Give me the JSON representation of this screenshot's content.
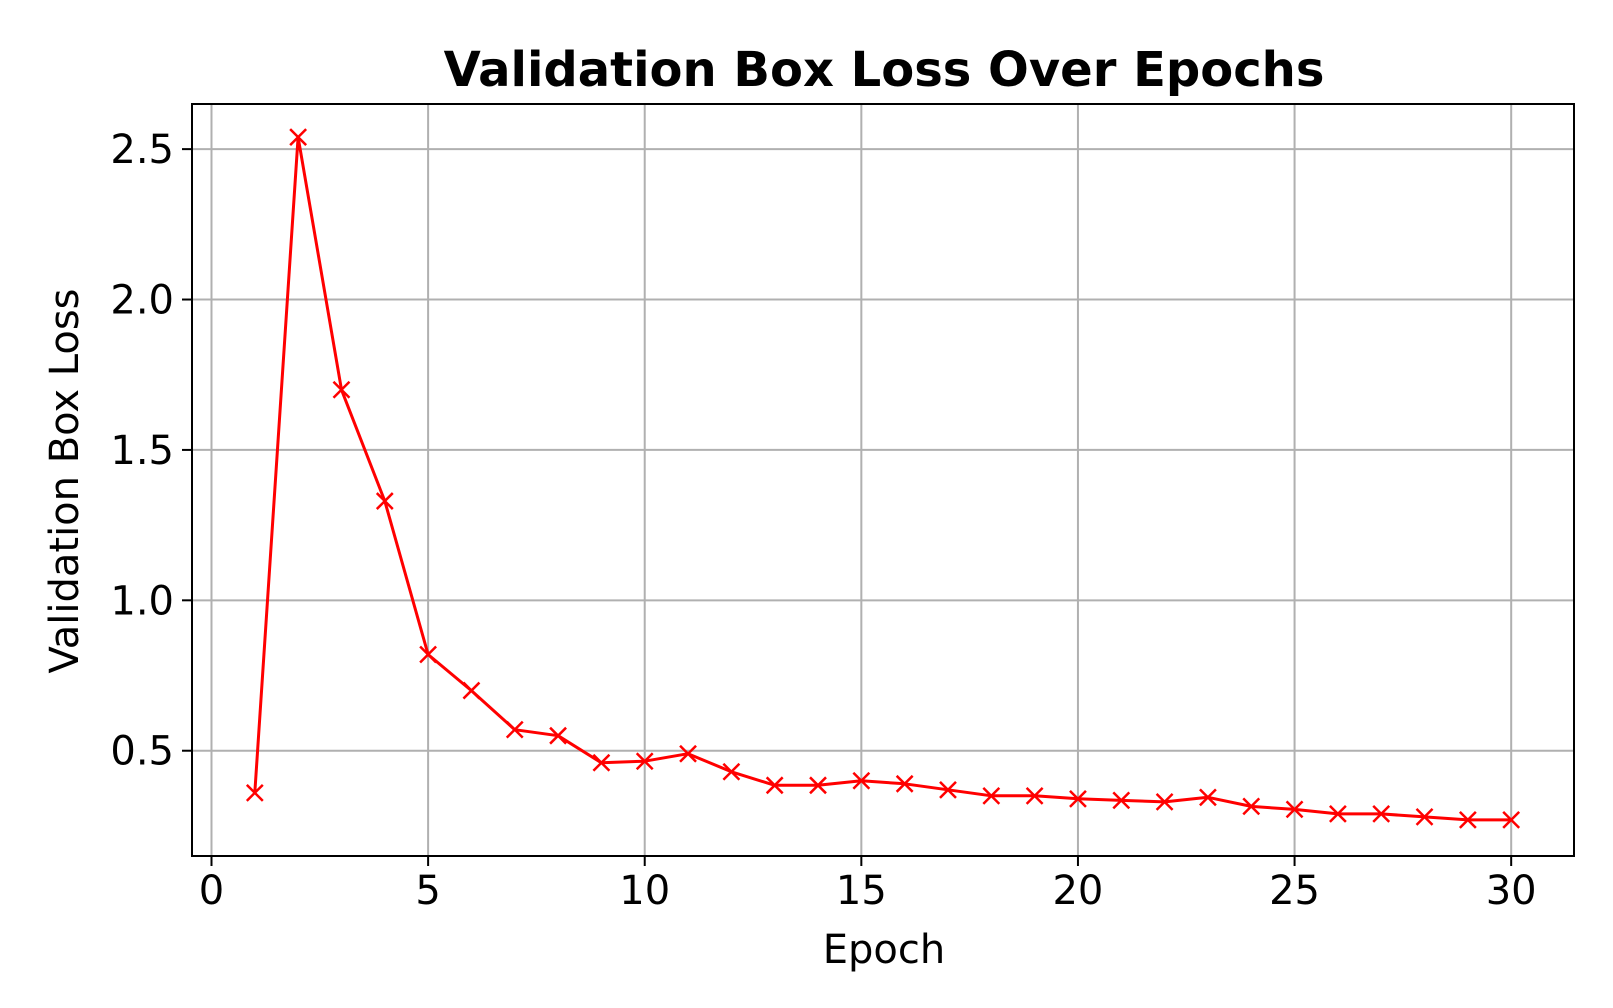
{
  "chart_data": {
    "type": "line",
    "title": "Validation Box Loss Over Epochs",
    "xlabel": "Epoch",
    "ylabel": "Validation Box Loss",
    "xlim": [
      -0.45,
      31.45
    ],
    "ylim": [
      0.15,
      2.65
    ],
    "xticks": [
      0,
      5,
      10,
      15,
      20,
      25,
      30
    ],
    "yticks": [
      0.5,
      1.0,
      1.5,
      2.0,
      2.5
    ],
    "xtick_labels": [
      "0",
      "5",
      "10",
      "15",
      "20",
      "25",
      "30"
    ],
    "ytick_labels": [
      "0.5",
      "1.0",
      "1.5",
      "2.0",
      "2.5"
    ],
    "grid": true,
    "series": [
      {
        "color": "#ff0000",
        "marker": "x",
        "x": [
          1,
          2,
          3,
          4,
          5,
          6,
          7,
          8,
          9,
          10,
          11,
          12,
          13,
          14,
          15,
          16,
          17,
          18,
          19,
          20,
          21,
          22,
          23,
          24,
          25,
          26,
          27,
          28,
          29,
          30
        ],
        "values": [
          0.36,
          2.54,
          1.7,
          1.33,
          0.82,
          0.7,
          0.57,
          0.55,
          0.46,
          0.465,
          0.49,
          0.43,
          0.385,
          0.385,
          0.4,
          0.39,
          0.37,
          0.35,
          0.35,
          0.34,
          0.335,
          0.33,
          0.345,
          0.315,
          0.305,
          0.29,
          0.29,
          0.28,
          0.27,
          0.27
        ]
      }
    ]
  }
}
